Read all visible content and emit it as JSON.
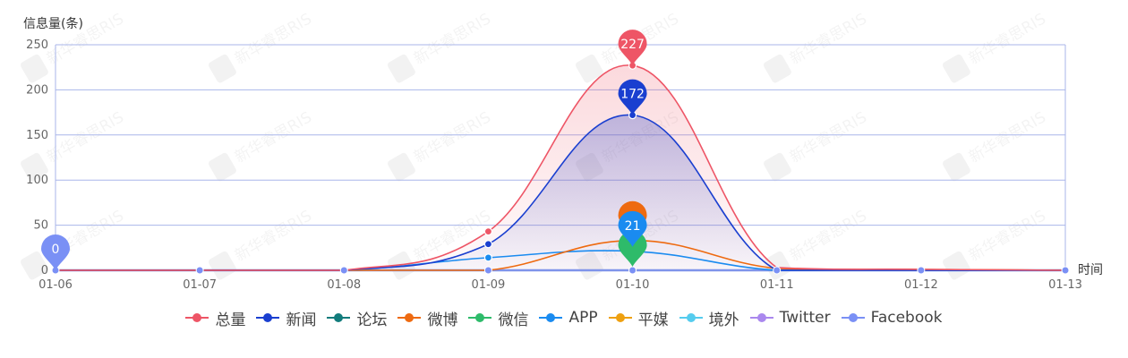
{
  "chart_data": {
    "type": "area",
    "ylabel": "信息量(条)",
    "xlabel": "时间",
    "ylim": [
      0,
      250
    ],
    "yticks": [
      0,
      50,
      100,
      150,
      200,
      250
    ],
    "categories": [
      "01-06",
      "01-07",
      "01-08",
      "01-09",
      "01-10",
      "01-11",
      "01-12",
      "01-13"
    ],
    "series": [
      {
        "name": "总量",
        "color": "#ee5566",
        "values": [
          0,
          0,
          0,
          43,
          227,
          3,
          1,
          0
        ],
        "area": true,
        "pin": 227
      },
      {
        "name": "新闻",
        "color": "#1a3fd0",
        "values": [
          0,
          0,
          0,
          29,
          172,
          0,
          0,
          0
        ],
        "area": true,
        "pin": 172
      },
      {
        "name": "论坛",
        "color": "#127c7c",
        "values": [
          0,
          0,
          0,
          0,
          0,
          0,
          0,
          0
        ]
      },
      {
        "name": "微博",
        "color": "#ee6a10",
        "values": [
          0,
          0,
          0,
          0,
          33,
          2,
          1,
          0
        ],
        "pin": 33
      },
      {
        "name": "微信",
        "color": "#2ebb6a",
        "values": [
          0,
          0,
          0,
          0,
          0,
          0,
          0,
          0
        ],
        "pin": 0
      },
      {
        "name": "APP",
        "color": "#1a8bf0",
        "values": [
          0,
          0,
          0,
          14,
          21,
          0,
          0,
          0
        ],
        "pin": 21
      },
      {
        "name": "平媒",
        "color": "#eea010",
        "values": [
          0,
          0,
          0,
          0,
          0,
          0,
          0,
          0
        ]
      },
      {
        "name": "境外",
        "color": "#55ccee",
        "values": [
          0,
          0,
          0,
          0,
          0,
          0,
          0,
          0
        ]
      },
      {
        "name": "Twitter",
        "color": "#aa88ee",
        "values": [
          0,
          0,
          0,
          0,
          0,
          0,
          0,
          0
        ]
      },
      {
        "name": "Facebook",
        "color": "#7a90f5",
        "values": [
          0,
          0,
          0,
          0,
          0,
          0,
          0,
          0
        ],
        "pin": 0,
        "pinIndex": 0
      }
    ],
    "watermark": "新华睿思RIS"
  }
}
